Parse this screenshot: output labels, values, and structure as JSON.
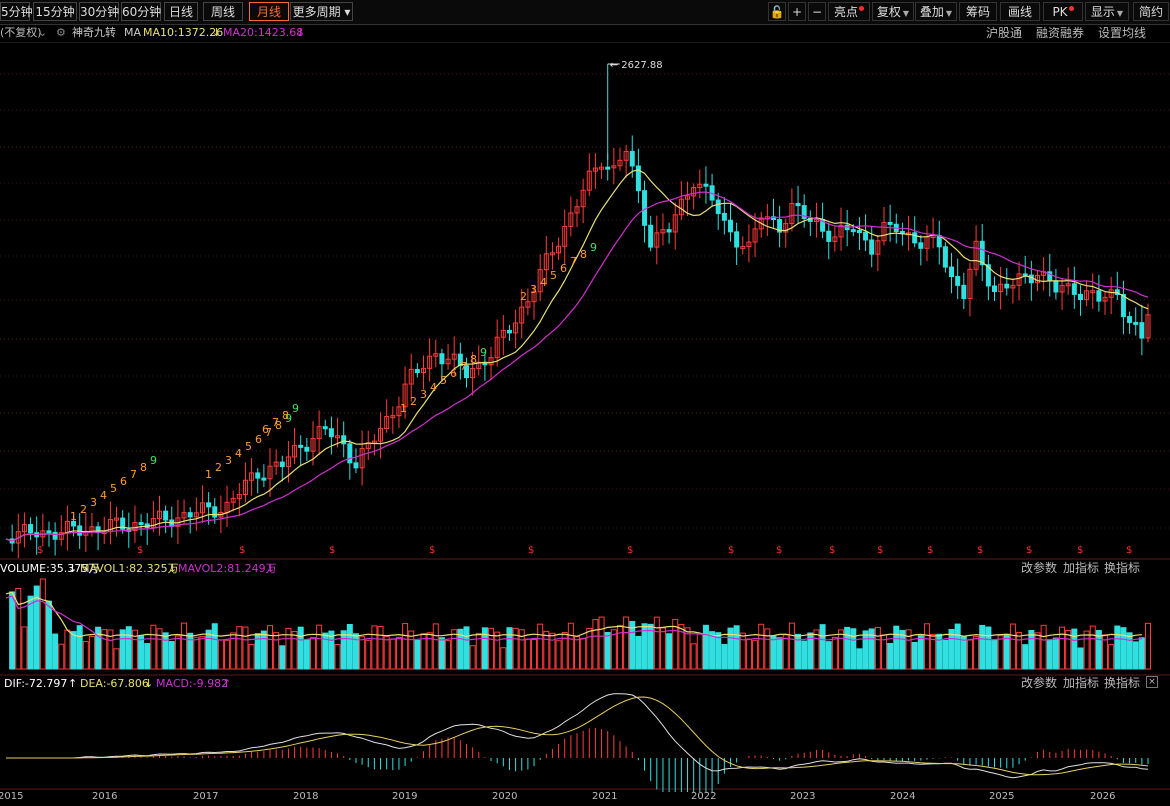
{
  "toolbar": {
    "periods": [
      "5分钟",
      "15分钟",
      "30分钟",
      "60分钟",
      "日线",
      "周线",
      "月线",
      "更多周期"
    ],
    "active_period": "月线",
    "right_items": {
      "lock": "🔓",
      "plus": "+",
      "minus": "−",
      "highlight": "亮点",
      "restore": "复权",
      "overlay": "叠加",
      "chips": "筹码",
      "draw": "画线",
      "pk": "PK",
      "display": "显示",
      "simple": "简约"
    }
  },
  "main_header": {
    "restore_mode": "(不复权)",
    "indicator": "神奇九转",
    "ma_label": "MA",
    "ma10": "MA10:1372.26",
    "ma20": "MA20:1423.68",
    "links": [
      "沪股通",
      "融资融券",
      "设置均线"
    ],
    "peak_label": "2627.88"
  },
  "volume_header": {
    "volume": "VOLUME:35.375万",
    "mavol1": "MAVOL1:82.325万",
    "mavol2": "MAVOL2:81.249万",
    "links": [
      "改参数",
      "加指标",
      "换指标"
    ]
  },
  "macd_header": {
    "dif": "DIF:-72.797",
    "dea": "DEA:-67.806",
    "macd": "MACD:-9.982",
    "links": [
      "改参数",
      "加指标",
      "换指标"
    ]
  },
  "x_axis": {
    "labels": [
      "2015",
      "2016",
      "2017",
      "2018",
      "2019",
      "2020",
      "2021",
      "2022",
      "2023",
      "2024",
      "2025",
      "2026"
    ]
  },
  "colors": {
    "up": "#ff3b3b",
    "down": "#30e0e0",
    "ma10": "#e8e070",
    "ma20": "#d030d0",
    "dif": "#e0e0e0",
    "dea": "#e8d060",
    "td_count": "#ff9a30",
    "td_nine": "#40e060"
  },
  "chart_data": {
    "type": "candlestick",
    "period": "monthly",
    "peak_high": 2627.88,
    "latest": {
      "ma10": 1372.26,
      "ma20": 1423.68,
      "volume": "35.375万",
      "mavol1": "82.325万",
      "mavol2": "81.249万",
      "dif": -72.797,
      "dea": -67.806,
      "macd": -9.982
    }
  }
}
